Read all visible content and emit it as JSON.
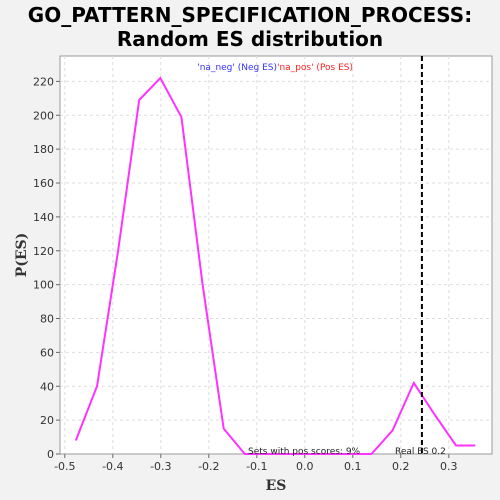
{
  "chart_data": {
    "type": "line",
    "title_line1": "GO_PATTERN_SPECIFICATION_PROCESS:",
    "title_line2": "Random ES distribution",
    "xlabel": "ES",
    "ylabel": "P(ES)",
    "xlim": [
      -0.51,
      0.39
    ],
    "ylim": [
      0,
      235
    ],
    "xticks": [
      -0.5,
      -0.4,
      -0.3,
      -0.2,
      -0.1,
      0.0,
      0.1,
      0.2,
      0.3
    ],
    "xtick_labels": [
      "-0.5",
      "-0.4",
      "-0.3",
      "-0.2",
      "-0.1",
      "0.0",
      "0.1",
      "0.2",
      "0.3"
    ],
    "yticks": [
      0,
      20,
      40,
      60,
      80,
      100,
      120,
      140,
      160,
      180,
      200,
      220
    ],
    "yticks_labels": [
      "0",
      "20",
      "40",
      "60",
      "80",
      "100",
      "120",
      "140",
      "160",
      "180",
      "200",
      "220"
    ],
    "grid": true,
    "legend": {
      "neg_label": "'na_neg' (Neg ES)",
      "pos_label": "'na_pos' (Pos ES)",
      "neg_color": "#3333ff",
      "pos_color": "#ff2222",
      "placement": "top-center"
    },
    "series": [
      {
        "color": "#ff33ff",
        "x": [
          -0.477,
          -0.433,
          -0.389,
          -0.345,
          -0.301,
          -0.257,
          -0.213,
          -0.169,
          -0.125,
          -0.081,
          -0.037,
          0.007,
          0.051,
          0.095,
          0.139,
          0.183,
          0.227,
          0.271,
          0.315,
          0.355
        ],
        "y": [
          8,
          40,
          120,
          209,
          222,
          199,
          100,
          15,
          0,
          0,
          0,
          0,
          0,
          0,
          0,
          14,
          42,
          23,
          5,
          5
        ]
      }
    ],
    "real_es": 0.244,
    "real_es_label": "Real ES 0.2",
    "annotation": "Sets with pos scores: 9%"
  }
}
